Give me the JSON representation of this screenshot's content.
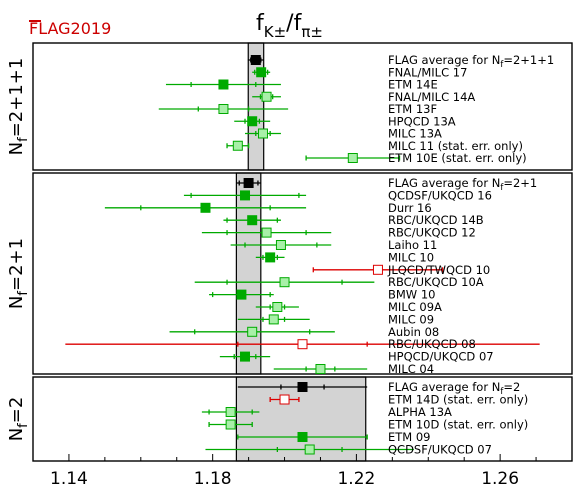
{
  "chart_data": {
    "type": "scatter",
    "title": "f_K±/f_π±",
    "logo": "FLAG2019",
    "xlim": [
      1.13,
      1.28
    ],
    "xticks": [
      1.14,
      1.18,
      1.22,
      1.26
    ],
    "xtick_labels": [
      "1.14",
      "1.18",
      "1.22",
      "1.26"
    ],
    "colors": {
      "average": "#000000",
      "green": "#00aa00",
      "light_green": "#a8f0a8",
      "red": "#dd0000"
    },
    "groups": [
      {
        "label": "Nf=2+1+1",
        "label_main": "N",
        "label_sub": "f",
        "label_rest": "=2+1+1",
        "band": [
          1.1899,
          1.1942
        ],
        "entries": [
          {
            "name": "FLAG average for Nf=2+1+1",
            "name_main": "FLAG average for N",
            "name_sub": "f",
            "name_rest": "=2+1+1",
            "value": 1.192,
            "err_stat": 0.0014,
            "err_total": 0.0022,
            "marker": "average"
          },
          {
            "name": "FNAL/MILC 17",
            "value": 1.1935,
            "err_stat": 0.0018,
            "err_total": 0.0025,
            "marker": "green"
          },
          {
            "name": "ETM 14E",
            "value": 1.183,
            "err_stat": 0.009,
            "err_total": 0.016,
            "marker": "green"
          },
          {
            "name": "FNAL/MILC 14A",
            "value": 1.195,
            "err_stat": 0.0017,
            "err_total": 0.004,
            "marker": "light"
          },
          {
            "name": "ETM 13F",
            "value": 1.183,
            "err_stat": 0.007,
            "err_total": 0.018,
            "marker": "light"
          },
          {
            "name": "HPQCD 13A",
            "value": 1.191,
            "err_stat": 0.002,
            "err_total": 0.005,
            "marker": "green"
          },
          {
            "name": "MILC 13A",
            "value": 1.194,
            "err_stat": 0.002,
            "err_total": 0.005,
            "marker": "light"
          },
          {
            "name": "MILC 11 (stat. err. only)",
            "value": 1.187,
            "err_stat": 0.003,
            "err_total": 0.003,
            "marker": "light"
          },
          {
            "name": "ETM 10E (stat. err. only)",
            "value": 1.219,
            "err_stat": 0.013,
            "err_total": 0.013,
            "marker": "light"
          }
        ]
      },
      {
        "label": "Nf=2+1",
        "label_main": "N",
        "label_sub": "f",
        "label_rest": "=2+1",
        "band": [
          1.1866,
          1.1934
        ],
        "entries": [
          {
            "name": "FLAG average for Nf=2+1",
            "name_main": "FLAG average for N",
            "name_sub": "f",
            "name_rest": "=2+1",
            "value": 1.19,
            "err_stat": 0.0026,
            "err_total": 0.0034,
            "marker": "average"
          },
          {
            "name": "QCDSF/UKQCD 16",
            "value": 1.189,
            "err_stat": 0.015,
            "err_total": 0.017,
            "marker": "green"
          },
          {
            "name": "Durr 16",
            "value": 1.178,
            "err_stat": 0.018,
            "err_total": 0.028,
            "marker": "green"
          },
          {
            "name": "RBC/UKQCD 14B",
            "value": 1.191,
            "err_stat": 0.007,
            "err_total": 0.008,
            "marker": "green"
          },
          {
            "name": "RBC/UKQCD 12",
            "value": 1.195,
            "err_stat": 0.011,
            "err_total": 0.018,
            "marker": "light"
          },
          {
            "name": "Laiho 11",
            "value": 1.199,
            "err_stat": 0.01,
            "err_total": 0.014,
            "marker": "light"
          },
          {
            "name": "MILC 10",
            "value": 1.196,
            "err_stat": 0.002,
            "err_total": 0.004,
            "marker": "green"
          },
          {
            "name": "JLQCD/TWQCD 10",
            "value": 1.226,
            "err_stat": 0.018,
            "err_total": 0.018,
            "marker": "red_open"
          },
          {
            "name": "RBC/UKQCD 10A",
            "value": 1.2,
            "err_stat": 0.016,
            "err_total": 0.025,
            "marker": "light"
          },
          {
            "name": "BMW 10",
            "value": 1.188,
            "err_stat": 0.008,
            "err_total": 0.009,
            "marker": "green"
          },
          {
            "name": "MILC 09A",
            "value": 1.198,
            "err_stat": 0.002,
            "err_total": 0.006,
            "marker": "light"
          },
          {
            "name": "MILC 09",
            "value": 1.197,
            "err_stat": 0.003,
            "err_total": 0.01,
            "marker": "light"
          },
          {
            "name": "Aubin 08",
            "value": 1.191,
            "err_stat": 0.016,
            "err_total": 0.023,
            "marker": "light"
          },
          {
            "name": "RBC/UKQCD 08",
            "value": 1.205,
            "err_stat": 0.018,
            "err_total": 0.066,
            "marker": "red_open"
          },
          {
            "name": "HPQCD/UKQCD 07",
            "value": 1.189,
            "err_stat": 0.003,
            "err_total": 0.007,
            "marker": "green"
          },
          {
            "name": "MILC 04",
            "value": 1.21,
            "err_stat": 0.004,
            "err_total": 0.013,
            "marker": "light"
          }
        ]
      },
      {
        "label": "Nf=2",
        "label_main": "N",
        "label_sub": "f",
        "label_rest": "=2",
        "band": [
          1.1866,
          1.2226
        ],
        "entries": [
          {
            "name": "FLAG average for Nf=2",
            "name_main": "FLAG average for N",
            "name_sub": "f",
            "name_rest": "=2",
            "value": 1.205,
            "err_stat": 0.006,
            "err_total": 0.018,
            "marker": "average"
          },
          {
            "name": "ETM 14D (stat. err. only)",
            "value": 1.2,
            "err_stat": 0.004,
            "err_total": 0.004,
            "marker": "red_open"
          },
          {
            "name": "ALPHA 13A",
            "value": 1.185,
            "err_stat": 0.006,
            "err_total": 0.008,
            "marker": "light"
          },
          {
            "name": "ETM 10D (stat. err. only)",
            "value": 1.185,
            "err_stat": 0.006,
            "err_total": 0.006,
            "marker": "light"
          },
          {
            "name": "ETM 09",
            "value": 1.205,
            "err_stat": 0.018,
            "err_total": 0.018,
            "marker": "green"
          },
          {
            "name": "QCDSF/UKQCD 07",
            "value": 1.207,
            "err_stat": 0.009,
            "err_total": 0.029,
            "marker": "light"
          }
        ]
      }
    ]
  }
}
